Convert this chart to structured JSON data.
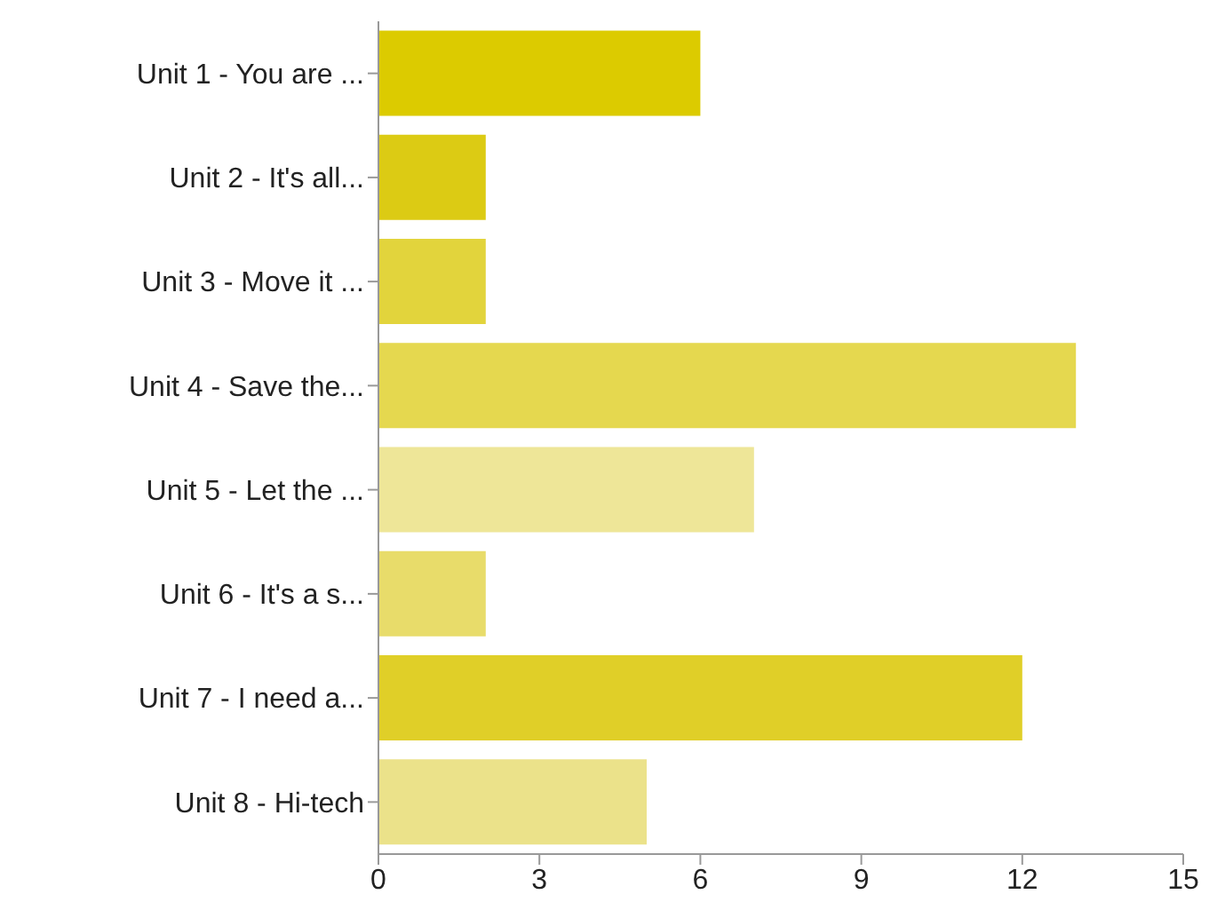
{
  "chart_data": {
    "type": "bar",
    "orientation": "horizontal",
    "categories": [
      "Unit 1 - You are ...",
      "Unit 2 - It's all...",
      "Unit 3 - Move it ...",
      "Unit 4 - Save the...",
      "Unit 5 - Let the ...",
      "Unit 6 - It's a s...",
      "Unit 7 - I need a...",
      "Unit 8 - Hi-tech"
    ],
    "values": [
      6,
      2,
      2,
      13,
      7,
      2,
      12,
      5
    ],
    "colors": [
      "#dccb00",
      "#dccb14",
      "#e2d43c",
      "#e5d84f",
      "#eee698",
      "#e8dc6a",
      "#e0cf28",
      "#ebe28a"
    ],
    "xlim": [
      0,
      15
    ],
    "xticks": [
      0,
      3,
      6,
      9,
      12,
      15
    ],
    "grid": false,
    "legend": false
  }
}
